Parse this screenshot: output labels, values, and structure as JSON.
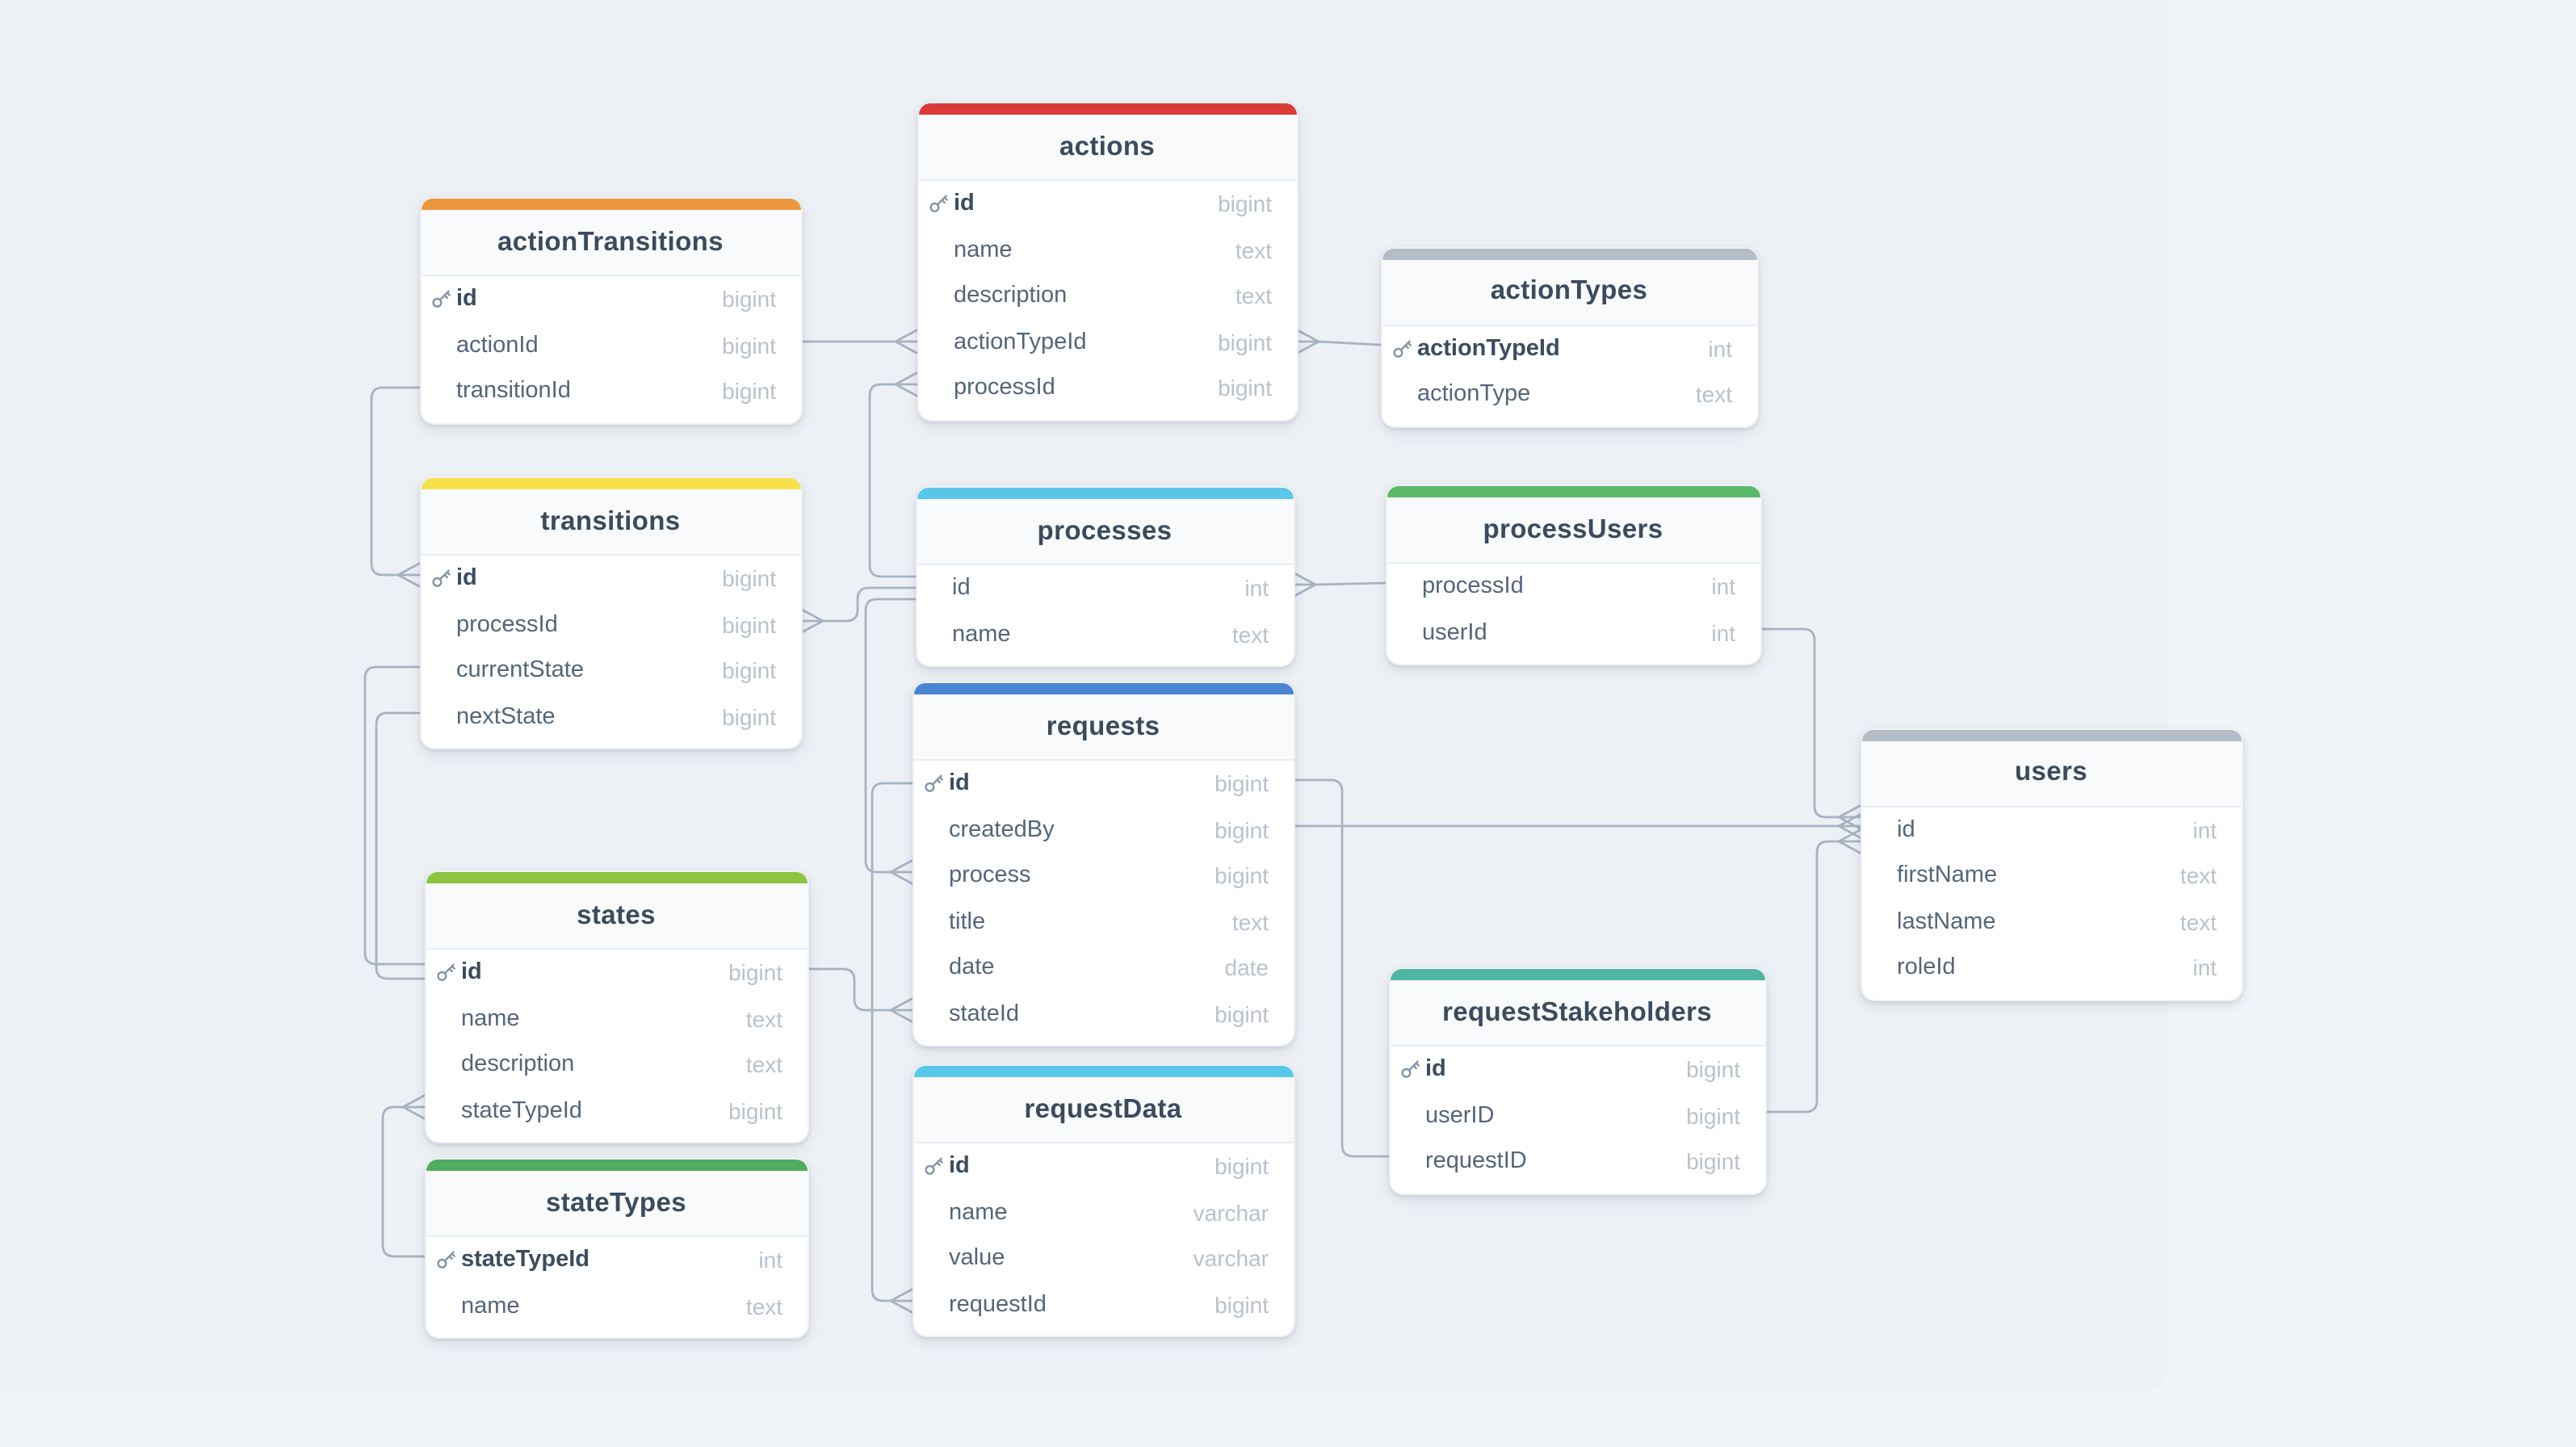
{
  "diagram": {
    "page_background": "#f1f5f9",
    "canvas_background": "#edf1f5",
    "line_color": "#a7b2c3"
  },
  "tables": [
    {
      "name": "actionTransitions",
      "color": "#eb973f",
      "fields": [
        {
          "name": "id",
          "type": "bigint",
          "key": true
        },
        {
          "name": "actionId",
          "type": "bigint",
          "key": false
        },
        {
          "name": "transitionId",
          "type": "bigint",
          "key": false
        }
      ]
    },
    {
      "name": "actions",
      "color": "#db3b39",
      "fields": [
        {
          "name": "id",
          "type": "bigint",
          "key": true
        },
        {
          "name": "name",
          "type": "text",
          "key": false
        },
        {
          "name": "description",
          "type": "text",
          "key": false
        },
        {
          "name": "actionTypeId",
          "type": "bigint",
          "key": false
        },
        {
          "name": "processId",
          "type": "bigint",
          "key": false
        }
      ]
    },
    {
      "name": "actionTypes",
      "color": "#b4bcc6",
      "fields": [
        {
          "name": "actionTypeId",
          "type": "int",
          "key": true
        },
        {
          "name": "actionType",
          "type": "text",
          "key": false
        }
      ]
    },
    {
      "name": "transitions",
      "color": "#f6e14d",
      "fields": [
        {
          "name": "id",
          "type": "bigint",
          "key": true
        },
        {
          "name": "processId",
          "type": "bigint",
          "key": false
        },
        {
          "name": "currentState",
          "type": "bigint",
          "key": false
        },
        {
          "name": "nextState",
          "type": "bigint",
          "key": false
        }
      ]
    },
    {
      "name": "processes",
      "color": "#58c7e9",
      "fields": [
        {
          "name": "id",
          "type": "int",
          "key": false
        },
        {
          "name": "name",
          "type": "text",
          "key": false
        }
      ]
    },
    {
      "name": "processUsers",
      "color": "#5cb96b",
      "fields": [
        {
          "name": "processId",
          "type": "int",
          "key": false
        },
        {
          "name": "userId",
          "type": "int",
          "key": false
        }
      ]
    },
    {
      "name": "requests",
      "color": "#4886d2",
      "fields": [
        {
          "name": "id",
          "type": "bigint",
          "key": true
        },
        {
          "name": "createdBy",
          "type": "bigint",
          "key": false
        },
        {
          "name": "process",
          "type": "bigint",
          "key": false
        },
        {
          "name": "title",
          "type": "text",
          "key": false
        },
        {
          "name": "date",
          "type": "date",
          "key": false
        },
        {
          "name": "stateId",
          "type": "bigint",
          "key": false
        }
      ]
    },
    {
      "name": "users",
      "color": "#b4bcc6",
      "fields": [
        {
          "name": "id",
          "type": "int",
          "key": false
        },
        {
          "name": "firstName",
          "type": "text",
          "key": false
        },
        {
          "name": "lastName",
          "type": "text",
          "key": false
        },
        {
          "name": "roleId",
          "type": "int",
          "key": false
        }
      ]
    },
    {
      "name": "states",
      "color": "#8bc541",
      "fields": [
        {
          "name": "id",
          "type": "bigint",
          "key": true
        },
        {
          "name": "name",
          "type": "text",
          "key": false
        },
        {
          "name": "description",
          "type": "text",
          "key": false
        },
        {
          "name": "stateTypeId",
          "type": "bigint",
          "key": false
        }
      ]
    },
    {
      "name": "requestStakeholders",
      "color": "#4fb5a2",
      "fields": [
        {
          "name": "id",
          "type": "bigint",
          "key": true
        },
        {
          "name": "userID",
          "type": "bigint",
          "key": false
        },
        {
          "name": "requestID",
          "type": "bigint",
          "key": false
        }
      ]
    },
    {
      "name": "stateTypes",
      "color": "#4ead5e",
      "fields": [
        {
          "name": "stateTypeId",
          "type": "int",
          "key": true
        },
        {
          "name": "name",
          "type": "text",
          "key": false
        }
      ]
    },
    {
      "name": "requestData",
      "color": "#58c7e9",
      "fields": [
        {
          "name": "id",
          "type": "bigint",
          "key": true
        },
        {
          "name": "name",
          "type": "varchar",
          "key": false
        },
        {
          "name": "value",
          "type": "varchar",
          "key": false
        },
        {
          "name": "requestId",
          "type": "bigint",
          "key": false
        }
      ]
    }
  ],
  "relationships": [
    {
      "from_table": "actionTransitions",
      "from_field": "actionId",
      "to_table": "actions",
      "to_field": "id"
    },
    {
      "from_table": "actions",
      "from_field": "actionTypeId",
      "to_table": "actionTypes",
      "to_field": "actionTypeId"
    },
    {
      "from_table": "actions",
      "from_field": "processId",
      "to_table": "processes",
      "to_field": "id"
    },
    {
      "from_table": "actionTransitions",
      "from_field": "transitionId",
      "to_table": "transitions",
      "to_field": "id"
    },
    {
      "from_table": "transitions",
      "from_field": "processId",
      "to_table": "processes",
      "to_field": "id"
    },
    {
      "from_table": "transitions",
      "from_field": "currentState",
      "to_table": "states",
      "to_field": "id"
    },
    {
      "from_table": "transitions",
      "from_field": "nextState",
      "to_table": "states",
      "to_field": "id"
    },
    {
      "from_table": "states",
      "from_field": "stateTypeId",
      "to_table": "stateTypes",
      "to_field": "stateTypeId"
    },
    {
      "from_table": "processUsers",
      "from_field": "processId",
      "to_table": "processes",
      "to_field": "id"
    },
    {
      "from_table": "processUsers",
      "from_field": "userId",
      "to_table": "users",
      "to_field": "id"
    },
    {
      "from_table": "requests",
      "from_field": "createdBy",
      "to_table": "users",
      "to_field": "id"
    },
    {
      "from_table": "requests",
      "from_field": "process",
      "to_table": "processes",
      "to_field": "id"
    },
    {
      "from_table": "requests",
      "from_field": "stateId",
      "to_table": "states",
      "to_field": "id"
    },
    {
      "from_table": "requestData",
      "from_field": "requestId",
      "to_table": "requests",
      "to_field": "id"
    },
    {
      "from_table": "requestStakeholders",
      "from_field": "requestID",
      "to_table": "requests",
      "to_field": "id"
    },
    {
      "from_table": "requestStakeholders",
      "from_field": "userID",
      "to_table": "users",
      "to_field": "id"
    }
  ]
}
